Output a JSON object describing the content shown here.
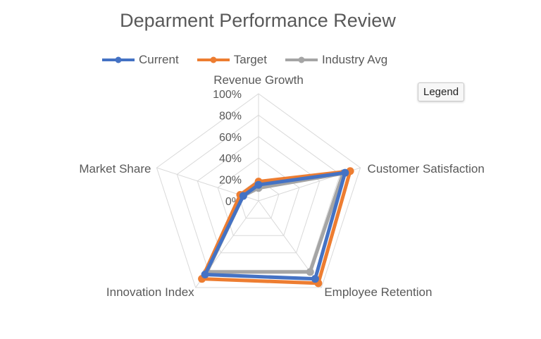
{
  "tooltip": "Legend",
  "colors": {
    "Current": "#4472c4",
    "Target": "#ed7d31",
    "Industry Avg": "#a5a5a5",
    "grid": "#d9d9d9"
  },
  "chart_data": {
    "type": "radar",
    "title": "Deparment Performance Review",
    "categories": [
      "Revenue Growth",
      "Customer Satisfaction",
      "Employee Retention",
      "Innovation Index",
      "Market Share"
    ],
    "tick_labels": [
      "0%",
      "20%",
      "40%",
      "60%",
      "80%",
      "100%"
    ],
    "rlim": [
      0,
      100
    ],
    "legend_position": "top",
    "grid": true,
    "series": [
      {
        "name": "Current",
        "values": [
          15,
          85,
          90,
          85,
          15
        ]
      },
      {
        "name": "Target",
        "values": [
          18,
          90,
          95,
          90,
          18
        ]
      },
      {
        "name": "Industry Avg",
        "values": [
          12,
          83,
          82,
          82,
          15
        ]
      }
    ]
  }
}
